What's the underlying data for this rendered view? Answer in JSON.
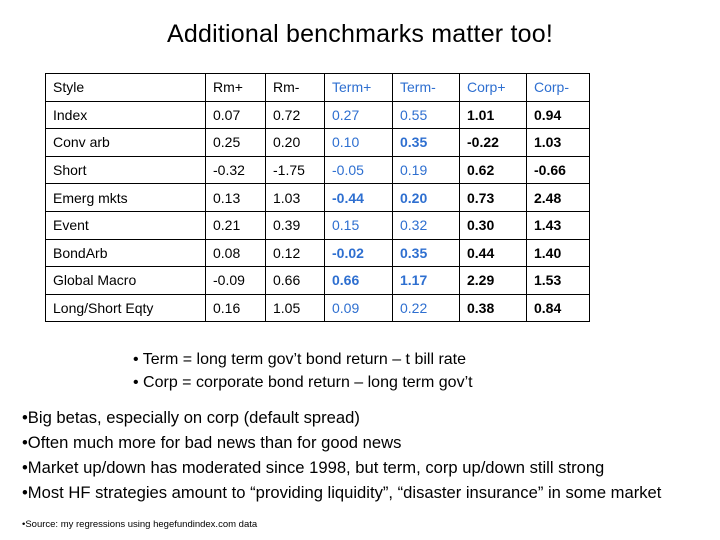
{
  "title": "Additional benchmarks matter too!",
  "table": {
    "headers": [
      "Style",
      "Rm+",
      "Rm-",
      "Term+",
      "Term-",
      "Corp+",
      "Corp-"
    ],
    "rows": [
      [
        "Index",
        "0.07",
        "0.72",
        "0.27",
        "0.55",
        "1.01",
        "0.94"
      ],
      [
        "Conv arb",
        "0.25",
        "0.20",
        "0.10",
        "0.35",
        "-0.22",
        "1.03"
      ],
      [
        "Short",
        "-0.32",
        "-1.75",
        "-0.05",
        "0.19",
        "0.62",
        "-0.66"
      ],
      [
        "Emerg mkts",
        "0.13",
        "1.03",
        "-0.44",
        "0.20",
        "0.73",
        "2.48"
      ],
      [
        "Event",
        "0.21",
        "0.39",
        "0.15",
        "0.32",
        "0.30",
        "1.43"
      ],
      [
        "BondArb",
        "0.08",
        "0.12",
        "-0.02",
        "0.35",
        "0.44",
        "1.40"
      ],
      [
        "Global Macro",
        "-0.09",
        "0.66",
        "0.66",
        "1.17",
        "2.29",
        "1.53"
      ],
      [
        "Long/Short Eqty",
        "0.16",
        "1.05",
        "0.09",
        "0.22",
        "0.38",
        "0.84"
      ]
    ],
    "bold_term_cells": [
      [
        1,
        4
      ],
      [
        3,
        3
      ],
      [
        3,
        4
      ],
      [
        5,
        3
      ],
      [
        5,
        4
      ],
      [
        6,
        3
      ],
      [
        6,
        4
      ]
    ]
  },
  "definitions": [
    "• Term = long term gov’t bond return – t bill rate",
    "• Corp = corporate bond return – long term gov’t"
  ],
  "bullets": [
    "•Big betas, especially on corp (default spread)",
    "•Often much more for bad news than for good news",
    "•Market up/down has moderated since 1998, but term, corp up/down still strong",
    "•Most HF strategies amount to “providing liquidity”, “disaster insurance” in some market"
  ],
  "source": "•Source: my regressions using hegefundindex.com data",
  "colors": {
    "term": "#2e6fd0",
    "text": "#000000"
  }
}
